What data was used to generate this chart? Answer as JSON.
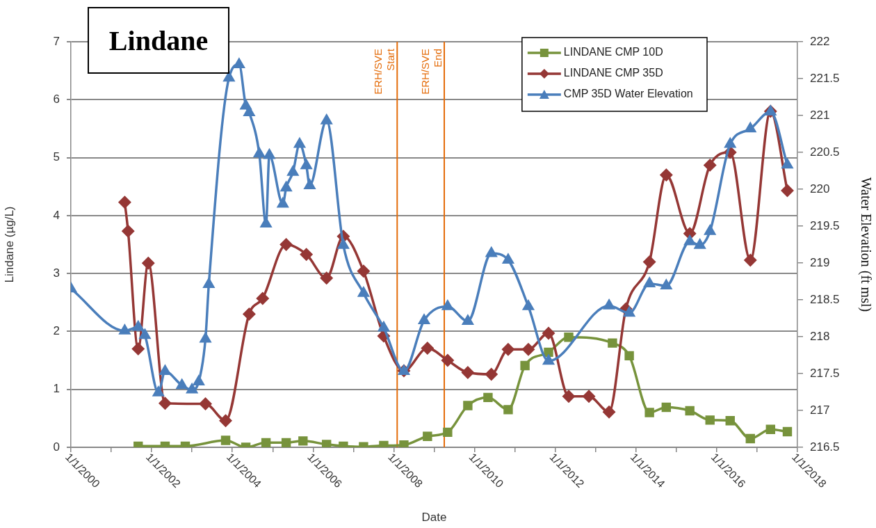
{
  "chart_data": {
    "type": "line",
    "title": "Lindane",
    "xlabel": "Date",
    "ylabel": "Lindane (µg/L)",
    "y2label": "Water Elevation (ft msl)",
    "xlim": [
      "2000-01-01",
      "2018-01-01"
    ],
    "xticks": [
      {
        "value": "2000-01-01",
        "label": "1/1/2000"
      },
      {
        "value": "2001-01-01",
        "label": null
      },
      {
        "value": "2002-01-01",
        "label": "1/1/2002"
      },
      {
        "value": "2003-01-01",
        "label": null
      },
      {
        "value": "2004-01-01",
        "label": "1/1/2004"
      },
      {
        "value": "2005-01-01",
        "label": null
      },
      {
        "value": "2006-01-01",
        "label": "1/1/2006"
      },
      {
        "value": "2007-01-01",
        "label": null
      },
      {
        "value": "2008-01-01",
        "label": "1/1/2008"
      },
      {
        "value": "2009-01-01",
        "label": null
      },
      {
        "value": "2010-01-01",
        "label": "1/1/2010"
      },
      {
        "value": "2011-01-01",
        "label": null
      },
      {
        "value": "2012-01-01",
        "label": "1/1/2012"
      },
      {
        "value": "2013-01-01",
        "label": null
      },
      {
        "value": "2014-01-01",
        "label": "1/1/2014"
      },
      {
        "value": "2015-01-01",
        "label": null
      },
      {
        "value": "2016-01-01",
        "label": "1/1/2016"
      },
      {
        "value": "2017-01-01",
        "label": null
      },
      {
        "value": "2018-01-01",
        "label": "1/1/2018"
      }
    ],
    "ylim": [
      0,
      7
    ],
    "yticks": [
      0,
      1,
      2,
      3,
      4,
      5,
      6,
      7
    ],
    "y2lim": [
      216.5,
      222
    ],
    "y2ticks": [
      216.5,
      217,
      217.5,
      218,
      218.5,
      219,
      219.5,
      220,
      220.5,
      221,
      221.5,
      222
    ],
    "grid": "y",
    "legend": "top right",
    "line_style": "solid",
    "ref_lines": [
      {
        "axis": "x",
        "value": "2008-02",
        "label": "ERH/SVE\nStart",
        "color": "#e46c0a"
      },
      {
        "axis": "x",
        "value": "2009-04",
        "label": "ERH/SVE\nEnd",
        "color": "#e46c0a"
      }
    ],
    "series": [
      {
        "name": "LINDANE CMP 10D",
        "color": "#77933c",
        "marker": "square",
        "x": [
          "2001-09",
          "2002-05",
          "2002-11",
          "2003-11",
          "2004-05",
          "2004-11",
          "2005-05",
          "2005-10",
          "2006-05",
          "2006-10",
          "2007-04",
          "2007-10",
          "2008-04",
          "2008-11",
          "2009-05",
          "2009-11",
          "2010-05",
          "2010-11",
          "2011-04",
          "2011-11",
          "2012-05",
          "2013-06",
          "2013-11",
          "2014-05",
          "2014-10",
          "2015-05",
          "2015-11",
          "2016-05",
          "2016-11",
          "2017-05",
          "2017-10"
        ],
        "values": [
          0.02,
          0.02,
          0.02,
          0.12,
          0.0,
          0.08,
          0.08,
          0.11,
          0.05,
          0.02,
          0.01,
          0.03,
          0.04,
          0.19,
          0.26,
          0.72,
          0.86,
          0.65,
          1.41,
          1.64,
          1.9,
          1.8,
          1.58,
          0.6,
          0.69,
          0.63,
          0.47,
          0.46,
          0.15,
          0.31,
          0.27
        ]
      },
      {
        "name": "LINDANE CMP 35D",
        "color": "#953735",
        "marker": "diamond",
        "x": [
          "2001-05",
          "2001-06",
          "2001-09",
          "2001-12",
          "2002-05",
          "2003-05",
          "2003-11",
          "2004-06",
          "2004-10",
          "2005-05",
          "2005-11",
          "2006-05",
          "2006-10",
          "2007-04",
          "2007-10",
          "2008-04",
          "2008-11",
          "2009-05",
          "2009-11",
          "2010-06",
          "2010-11",
          "2011-05",
          "2011-11",
          "2012-05",
          "2012-11",
          "2013-05",
          "2013-10",
          "2014-05",
          "2014-10",
          "2015-05",
          "2015-11",
          "2016-05",
          "2016-11",
          "2017-05",
          "2017-10"
        ],
        "values": [
          4.23,
          3.73,
          1.7,
          3.18,
          0.76,
          0.75,
          0.46,
          2.3,
          2.57,
          3.5,
          3.33,
          2.92,
          3.64,
          3.04,
          1.92,
          1.32,
          1.71,
          1.5,
          1.29,
          1.26,
          1.69,
          1.69,
          1.97,
          0.88,
          0.88,
          0.61,
          2.39,
          3.2,
          4.7,
          3.69,
          4.87,
          5.09,
          3.23,
          5.8,
          4.43
        ]
      },
      {
        "name": "CMP 35D Water Elevation",
        "color": "#4a7ebb",
        "marker": "triangle",
        "axis": "y2",
        "x": [
          "2000-01",
          "2001-05",
          "2001-09",
          "2001-11",
          "2002-03",
          "2002-05",
          "2002-10",
          "2003-01",
          "2003-03",
          "2003-05",
          "2003-06",
          "2003-12",
          "2004-03",
          "2004-05",
          "2004-06",
          "2004-09",
          "2004-11",
          "2004-12",
          "2005-04",
          "2005-05",
          "2005-07",
          "2005-09",
          "2005-11",
          "2005-12",
          "2006-05",
          "2006-10",
          "2007-04",
          "2007-10",
          "2008-04",
          "2008-10",
          "2009-05",
          "2009-11",
          "2010-06",
          "2010-11",
          "2011-05",
          "2011-11",
          "2013-05",
          "2013-11",
          "2014-05",
          "2014-10",
          "2015-05",
          "2015-08",
          "2015-11",
          "2016-05",
          "2016-11",
          "2017-05",
          "2017-10"
        ],
        "values": [
          218.65,
          218.08,
          218.13,
          218.02,
          217.24,
          217.53,
          217.34,
          217.28,
          217.39,
          217.97,
          218.71,
          221.51,
          221.69,
          221.13,
          221.04,
          220.48,
          219.53,
          220.46,
          219.8,
          220.02,
          220.23,
          220.61,
          220.32,
          220.05,
          220.93,
          219.24,
          218.59,
          218.12,
          217.53,
          218.22,
          218.41,
          218.21,
          219.13,
          219.04,
          218.41,
          217.67,
          218.42,
          218.32,
          218.72,
          218.69,
          219.29,
          219.24,
          219.43,
          220.61,
          220.82,
          221.05,
          220.33
        ]
      }
    ]
  }
}
